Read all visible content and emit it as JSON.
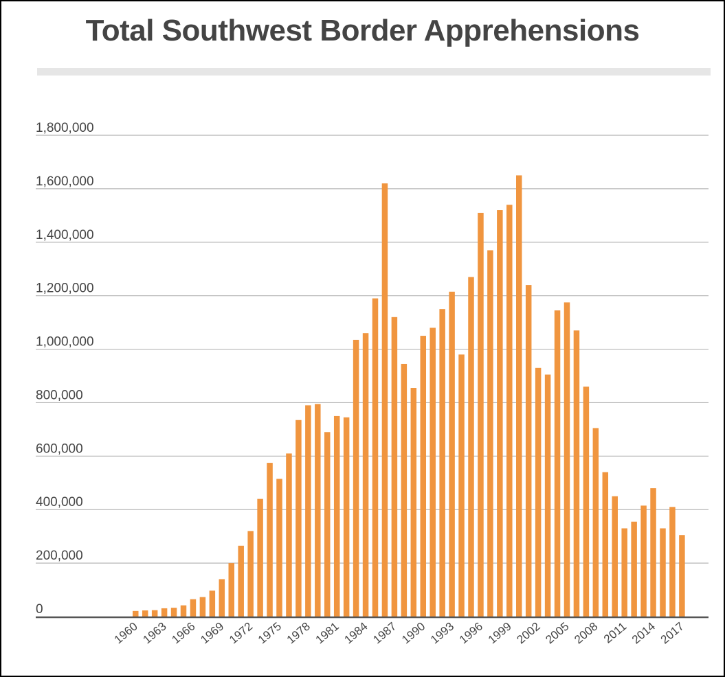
{
  "chart_data": {
    "type": "bar",
    "title": "Total Southwest Border Apprehensions",
    "xlabel": "",
    "ylabel": "",
    "ylim": [
      0,
      1800000
    ],
    "yticks": [
      {
        "value": 0,
        "label": "0"
      },
      {
        "value": 200000,
        "label": "200,000"
      },
      {
        "value": 400000,
        "label": "400,000"
      },
      {
        "value": 600000,
        "label": "600,000"
      },
      {
        "value": 800000,
        "label": "800,000"
      },
      {
        "value": 1000000,
        "label": "1,000,000"
      },
      {
        "value": 1200000,
        "label": "1,200,000"
      },
      {
        "value": 1400000,
        "label": "1,400,000"
      },
      {
        "value": 1600000,
        "label": "1,600,000"
      },
      {
        "value": 1800000,
        "label": "1,800,000"
      }
    ],
    "xtick_labels": [
      "1960",
      "1963",
      "1966",
      "1969",
      "1972",
      "1975",
      "1978",
      "1981",
      "1984",
      "1987",
      "1990",
      "1993",
      "1996",
      "1999",
      "2002",
      "2005",
      "2008",
      "2011",
      "2014",
      "2017"
    ],
    "categories": [
      "1960",
      "1961",
      "1962",
      "1963",
      "1964",
      "1965",
      "1966",
      "1967",
      "1968",
      "1969",
      "1970",
      "1971",
      "1972",
      "1973",
      "1974",
      "1975",
      "1976",
      "1977",
      "1978",
      "1979",
      "1980",
      "1981",
      "1982",
      "1983",
      "1984",
      "1985",
      "1986",
      "1987",
      "1988",
      "1989",
      "1990",
      "1991",
      "1992",
      "1993",
      "1994",
      "1995",
      "1996",
      "1997",
      "1998",
      "1999",
      "2000",
      "2001",
      "2002",
      "2003",
      "2004",
      "2005",
      "2006",
      "2007",
      "2008",
      "2009",
      "2010",
      "2011",
      "2012",
      "2013",
      "2014",
      "2015",
      "2016",
      "2017"
    ],
    "values": [
      21000,
      23000,
      24000,
      31000,
      33000,
      42000,
      65000,
      73000,
      97000,
      140000,
      200000,
      265000,
      320000,
      440000,
      575000,
      515000,
      610000,
      735000,
      790000,
      795000,
      690000,
      750000,
      745000,
      1035000,
      1060000,
      1190000,
      1620000,
      1120000,
      945000,
      855000,
      1050000,
      1080000,
      1150000,
      1215000,
      980000,
      1270000,
      1510000,
      1370000,
      1520000,
      1540000,
      1650000,
      1240000,
      930000,
      905000,
      1145000,
      1175000,
      1070000,
      860000,
      705000,
      540000,
      450000,
      330000,
      355000,
      415000,
      480000,
      330000,
      410000,
      305000
    ],
    "bar_color": "#f0953f",
    "grid": true,
    "legend": "none"
  }
}
